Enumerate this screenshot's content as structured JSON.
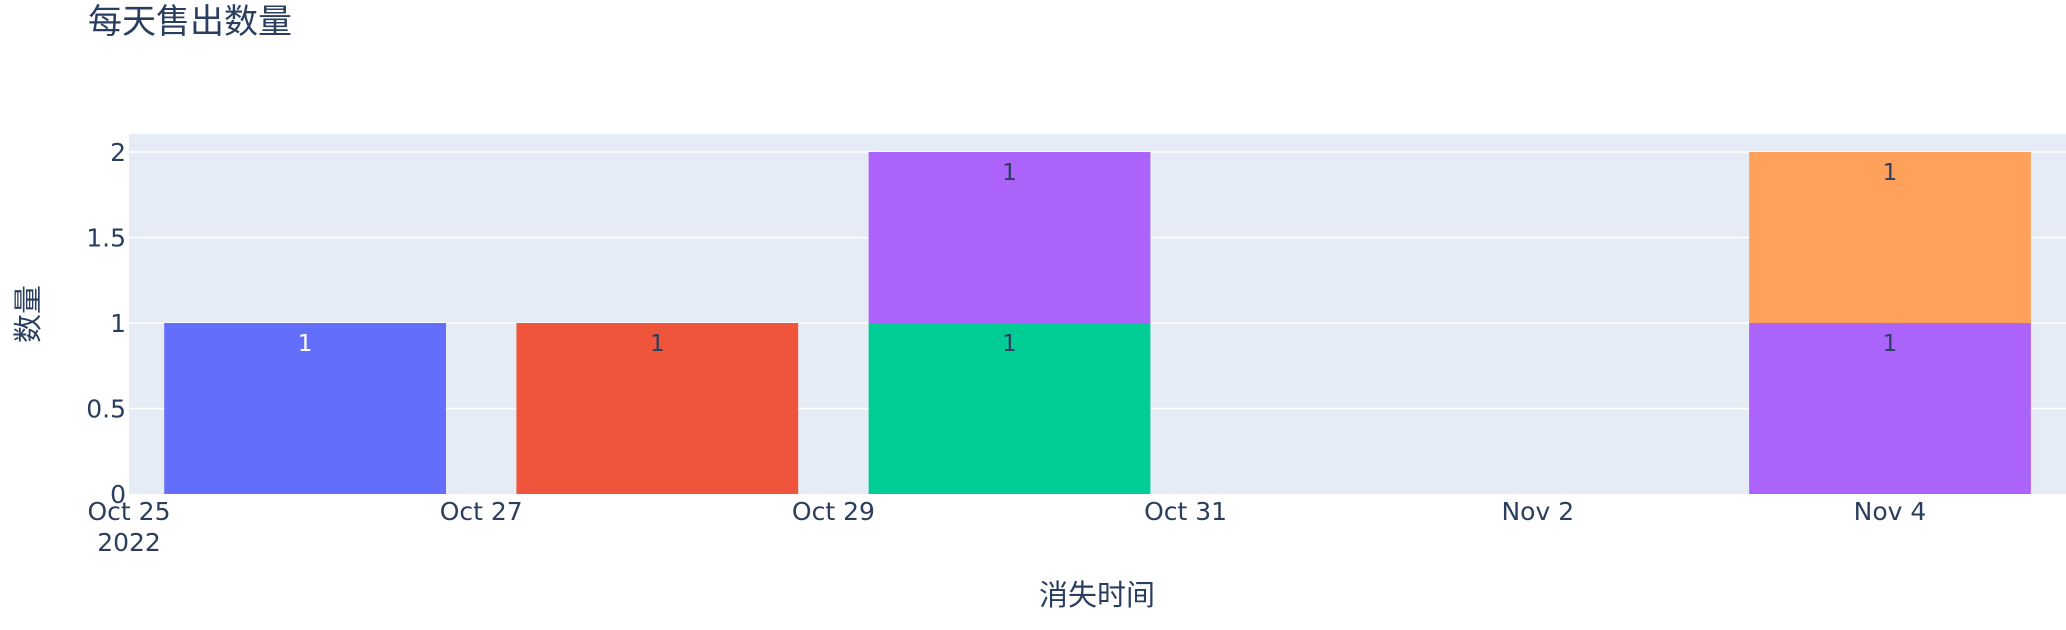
{
  "chart_data": {
    "type": "bar",
    "barmode": "stack",
    "title": "每天售出数量",
    "xlabel": "消失时间",
    "ylabel": "数量",
    "x_tick_labels": [
      "Oct 25",
      "Oct 27",
      "Oct 29",
      "Oct 31",
      "Nov 2",
      "Nov 4"
    ],
    "x_tick_dates": [
      "2022-10-25",
      "2022-10-27",
      "2022-10-29",
      "2022-10-31",
      "2022-11-02",
      "2022-11-04"
    ],
    "x_year_label": "2022",
    "y_tick_labels": [
      "0",
      "0.5",
      "1",
      "1.5",
      "2"
    ],
    "ylim": [
      0,
      2.05
    ],
    "xlim": [
      "2022-10-25",
      "2022-11-05"
    ],
    "grid": true,
    "bars": [
      {
        "date": "2022-10-26",
        "base": 0,
        "value": 1,
        "label": "1",
        "color": "#636efa",
        "label_color": "#ffffff"
      },
      {
        "date": "2022-10-28",
        "base": 0,
        "value": 1,
        "label": "1",
        "color": "#ef553b",
        "label_color": "#2a3f5f"
      },
      {
        "date": "2022-10-30",
        "base": 0,
        "value": 1,
        "label": "1",
        "color": "#00cc96",
        "label_color": "#2a3f5f"
      },
      {
        "date": "2022-10-30",
        "base": 1,
        "value": 1,
        "label": "1",
        "color": "#ab63fa",
        "label_color": "#2a3f5f"
      },
      {
        "date": "2022-11-04",
        "base": 0,
        "value": 1,
        "label": "1",
        "color": "#ab63fa",
        "label_color": "#2a3f5f"
      },
      {
        "date": "2022-11-04",
        "base": 1,
        "value": 1,
        "label": "1",
        "color": "#ffa15a",
        "label_color": "#2a3f5f"
      }
    ],
    "colors": {
      "plot_bg": "#e5ecf6",
      "grid": "#ffffff",
      "text": "#2a3f5f"
    }
  }
}
